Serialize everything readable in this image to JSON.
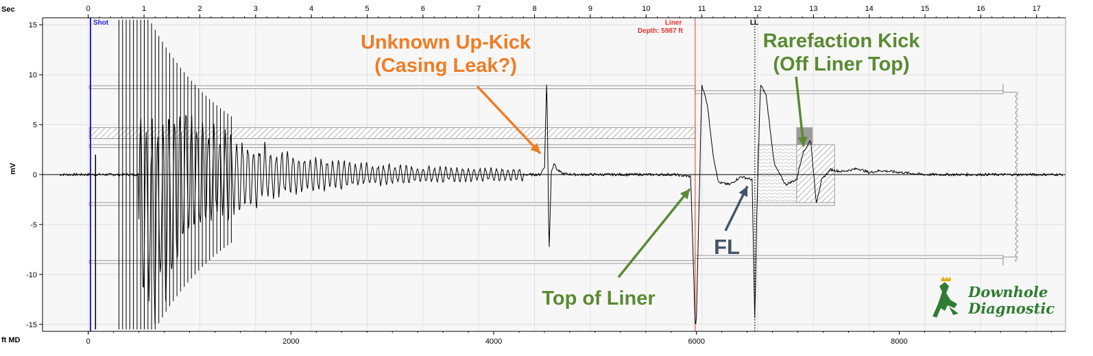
{
  "chart_data": {
    "type": "line",
    "top_axis_name": "Sec",
    "bottom_axis_name": "ft MD",
    "y_axis_name": "mV",
    "sec_ticks": [
      "0",
      "1",
      "2",
      "3",
      "4",
      "5",
      "6",
      "7",
      "8",
      "9",
      "10",
      "11",
      "12",
      "13",
      "14",
      "15",
      "16",
      "17"
    ],
    "ft_ticks": [
      "0",
      "2000",
      "4000",
      "6000",
      "8000"
    ],
    "y_ticks": [
      "15",
      "10",
      "5",
      "0",
      "-5",
      "-10",
      "-15"
    ],
    "xlim_sec": [
      -0.82,
      17.52
    ],
    "ylim_mv": [
      -15.7,
      15.7
    ],
    "grid": true,
    "markers": [
      {
        "name": "shot",
        "label": "Shot",
        "sec": 0.04,
        "color": "#1f1fd8"
      },
      {
        "name": "liner",
        "label": "Liner",
        "sublabel": "Depth: 5987 ft",
        "sec": 10.88,
        "color": "#e8332a"
      },
      {
        "name": "ll",
        "label": "LL",
        "sec": 11.95,
        "color": "#000000"
      }
    ],
    "annotations": {
      "unknown_kick_line1": "Unknown Up-Kick",
      "unknown_kick_line2": "(Casing Leak?)",
      "rarefaction_line1": "Rarefaction Kick",
      "rarefaction_line2": "(Off Liner Top)",
      "top_of_liner": "Top of Liner",
      "fluid_level": "FL"
    },
    "annotation_colors": {
      "orange": "#f07c25",
      "green": "#5a8a32",
      "slate": "#44546a"
    },
    "series": [
      {
        "x_sec": [
          0,
          0.1,
          0.2,
          0.3,
          0.5,
          0.7,
          1.0,
          1.5,
          2.0,
          2.5,
          3.0,
          4.0,
          5.0,
          6.0,
          7.0,
          7.8,
          8.1,
          8.18,
          8.22,
          8.26,
          8.3,
          8.35,
          8.4,
          8.5,
          8.7,
          9.0,
          9.5,
          10.0,
          10.5,
          10.8,
          10.88,
          10.9,
          11.0,
          11.1,
          11.2,
          11.3,
          11.5,
          11.7,
          11.9,
          11.95,
          11.98,
          12.05,
          12.15,
          12.3,
          12.5,
          12.7,
          12.8,
          12.95,
          13.05,
          13.15,
          13.3,
          13.5,
          13.8,
          14.0,
          14.2,
          14.6,
          15.0,
          15.5,
          16.0,
          16.5,
          17.0,
          17.5
        ],
        "y_mv": [
          0,
          0,
          0,
          0,
          0,
          0,
          0,
          0,
          0,
          0,
          0,
          0,
          0,
          0,
          0,
          0,
          0,
          0.8,
          10,
          -8,
          0.2,
          1.2,
          0.5,
          0.1,
          0,
          0,
          0,
          0,
          0,
          -0.2,
          -15,
          -15,
          9,
          7,
          2,
          -0.8,
          -1,
          -0.2,
          -0.5,
          -15,
          -5,
          9,
          8,
          1,
          -1,
          -0.5,
          2,
          3.5,
          -2.8,
          -0.5,
          0.5,
          0.3,
          0.6,
          0.2,
          0.4,
          0.2,
          0,
          0,
          0,
          0,
          0,
          0
        ]
      }
    ]
  }
}
